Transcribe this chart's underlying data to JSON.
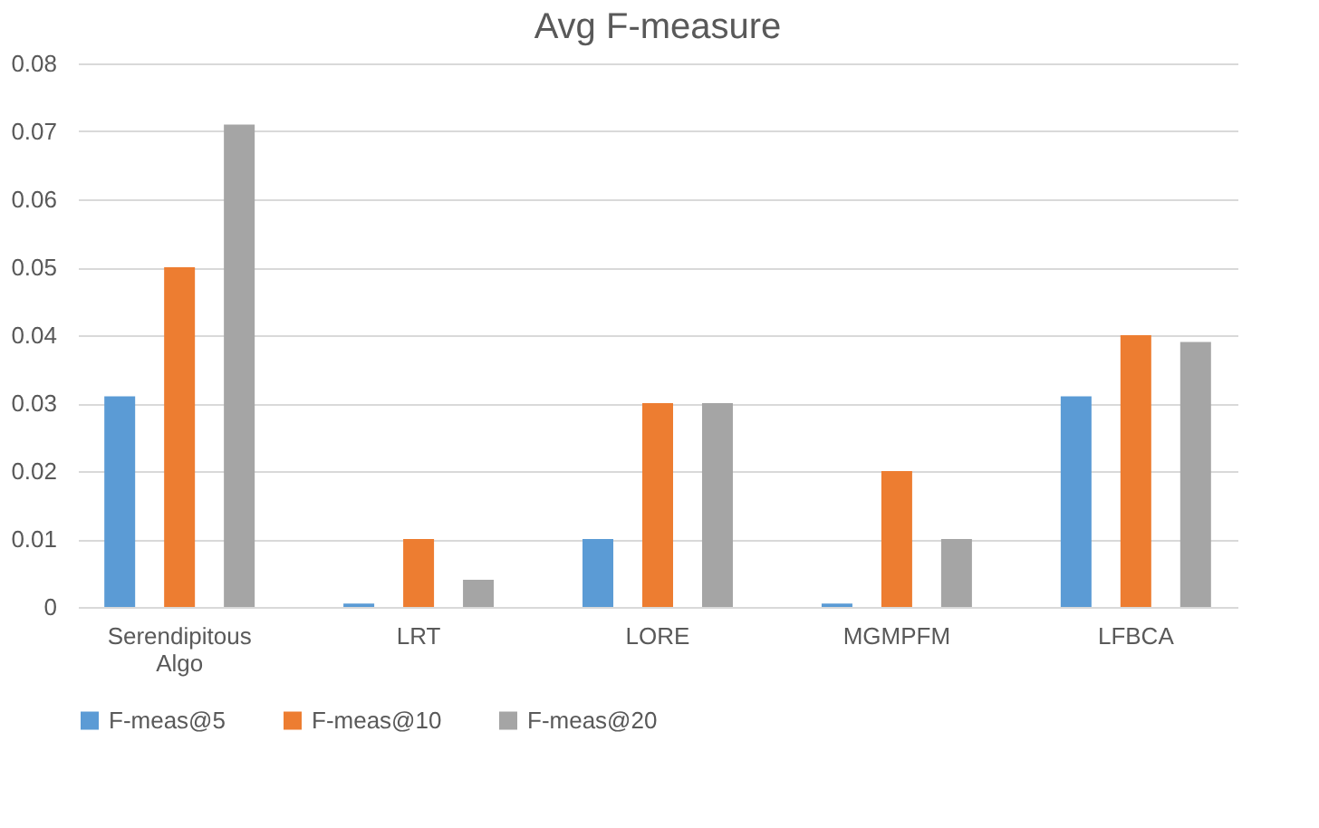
{
  "chart_data": {
    "type": "bar",
    "title": "Avg F-measure",
    "categories": [
      "Serendipitous Algo",
      "LRT",
      "LORE",
      "MGMPFM",
      "LFBCA"
    ],
    "series": [
      {
        "name": "F-meas@5",
        "color": "#5b9bd5",
        "values": [
          0.031,
          0.0005,
          0.01,
          0.0005,
          0.031
        ]
      },
      {
        "name": "F-meas@10",
        "color": "#ed7d31",
        "values": [
          0.05,
          0.01,
          0.03,
          0.02,
          0.04
        ]
      },
      {
        "name": "F-meas@20",
        "color": "#a5a5a5",
        "values": [
          0.071,
          0.004,
          0.03,
          0.01,
          0.039
        ]
      }
    ],
    "ylim": [
      0,
      0.08
    ],
    "yticks": [
      0,
      0.01,
      0.02,
      0.03,
      0.04,
      0.05,
      0.06,
      0.07,
      0.08
    ],
    "grid": "y",
    "legend": "bottom"
  }
}
